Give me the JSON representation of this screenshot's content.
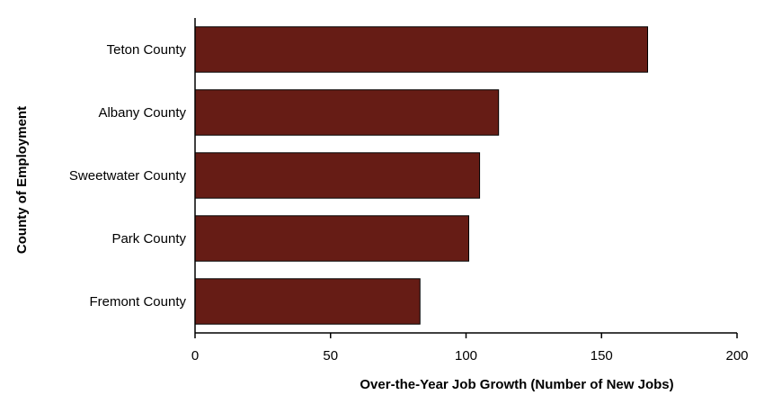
{
  "chart_data": {
    "type": "bar",
    "orientation": "horizontal",
    "title": "",
    "xlabel": "Over-the-Year Job Growth (Number of New Jobs)",
    "ylabel": "County of Employment",
    "categories": [
      "Teton County",
      "Albany County",
      "Sweetwater County",
      "Park County",
      "Fremont County"
    ],
    "values": [
      167,
      112,
      105,
      101,
      83
    ],
    "xlim": [
      0,
      200
    ],
    "xticks": [
      0,
      50,
      100,
      150,
      200
    ],
    "grid": false,
    "legend": "none",
    "bar_color": "#661c15",
    "bar_edge_color": "#000000"
  }
}
